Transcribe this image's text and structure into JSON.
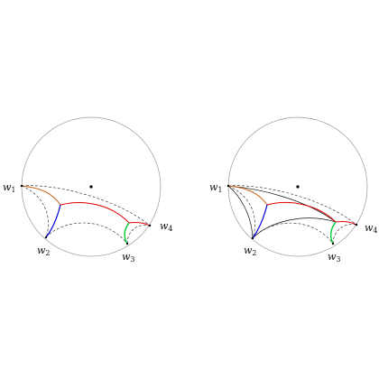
{
  "colors": {
    "disk_outline": "#9a9a9a",
    "dashed_geodesic": "#222222",
    "black_geodesic": "#111111",
    "red_curve": "#e00000",
    "blue_curve": "#0000dd",
    "green_curve": "#00cc33",
    "orange_curve": "#c8651b",
    "point": "#000000"
  },
  "panels": [
    {
      "labels": {
        "w1": {
          "letter": "w",
          "index": "1"
        },
        "w2": {
          "letter": "w",
          "index": "2"
        },
        "w3": {
          "letter": "w",
          "index": "3"
        },
        "w4": {
          "letter": "w",
          "index": "4"
        }
      }
    },
    {
      "labels": {
        "w1": {
          "letter": "w",
          "index": "1"
        },
        "w2": {
          "letter": "w",
          "index": "2"
        },
        "w3": {
          "letter": "w",
          "index": "3"
        },
        "w4": {
          "letter": "w",
          "index": "4"
        }
      }
    }
  ]
}
